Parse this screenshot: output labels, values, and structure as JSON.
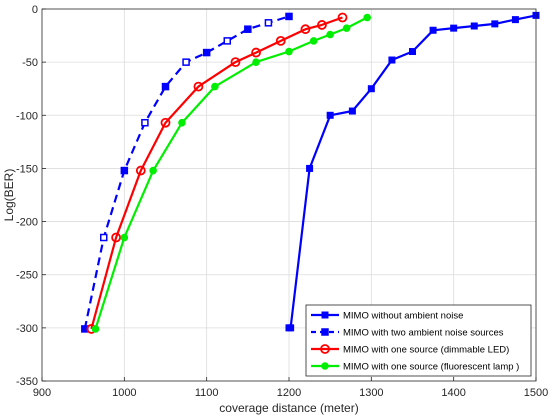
{
  "chart_data": {
    "type": "line",
    "title": "",
    "xlabel": "coverage distance (meter)",
    "ylabel": "Log(BER)",
    "xlim": [
      900,
      1500
    ],
    "ylim": [
      -350,
      0
    ],
    "xticks": [
      "900",
      "1000",
      "1100",
      "1200",
      "1300",
      "1400",
      "1500"
    ],
    "yticks": [
      "0",
      "-50",
      "-100",
      "-150",
      "-200",
      "-250",
      "-300",
      "-350"
    ],
    "grid": true,
    "legend_position": "bottom-right",
    "series": [
      {
        "name": "MIMO without ambient noise",
        "color": "#0000ff",
        "line": "solid",
        "marker": "square-filled",
        "x": [
          1200,
          1202,
          1225,
          1250,
          1277,
          1300,
          1325,
          1350,
          1375,
          1400,
          1425,
          1450,
          1475,
          1500
        ],
        "y": [
          -300,
          -300,
          -150,
          -100,
          -96,
          -75,
          -48,
          -40,
          -20,
          -18,
          -16,
          -14,
          -10,
          -6
        ]
      },
      {
        "name": "MIMO with two ambient noise sources",
        "color": "#0000ff",
        "line": "dashed",
        "marker": "square-mixed",
        "x": [
          952,
          975,
          1000,
          1025,
          1050,
          1075,
          1100,
          1125,
          1150,
          1175,
          1200
        ],
        "y": [
          -301,
          -215,
          -152,
          -107,
          -73,
          -50,
          -41,
          -30,
          -19,
          -13,
          -7
        ]
      },
      {
        "name": "MIMO with one source (dimmable LED)",
        "color": "#ff0000",
        "line": "solid",
        "marker": "circle-open",
        "x": [
          960,
          990,
          1020,
          1050,
          1090,
          1135,
          1160,
          1190,
          1220,
          1240,
          1265
        ],
        "y": [
          -301,
          -215,
          -152,
          -107,
          -73,
          -50,
          -41,
          -30,
          -19,
          -15,
          -8
        ]
      },
      {
        "name": "MIMO with one source (fluorescent lamp )",
        "color": "#00ee00",
        "line": "solid",
        "marker": "circle-filled",
        "x": [
          965,
          1000,
          1035,
          1070,
          1110,
          1160,
          1200,
          1230,
          1250,
          1270,
          1295
        ],
        "y": [
          -301,
          -215,
          -152,
          -107,
          -73,
          -50,
          -40,
          -30,
          -24,
          -18,
          -8
        ]
      }
    ]
  }
}
